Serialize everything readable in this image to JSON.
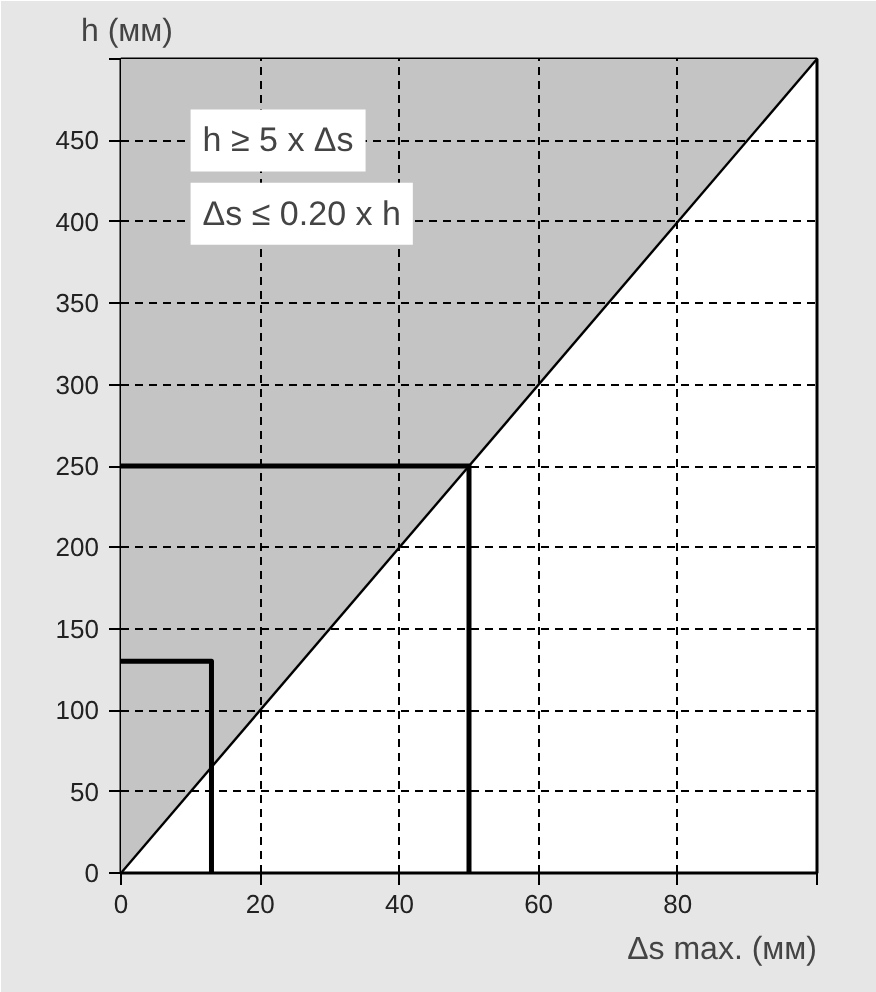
{
  "chart_data": {
    "type": "area",
    "xlabel": "Δs max. (мм)",
    "ylabel": "h (мм)",
    "annotations": [
      "h ≥ 5 x Δs",
      "Δs ≤ 0.20 x h"
    ],
    "xlim": [
      0,
      100
    ],
    "ylim": [
      0,
      500
    ],
    "xticks": [
      0,
      20,
      40,
      60,
      80,
      {
        "value": 100,
        "label": null
      }
    ],
    "yticks": [
      0,
      50,
      100,
      150,
      200,
      250,
      300,
      350,
      400,
      450,
      {
        "value": 500,
        "label": null
      }
    ],
    "grid": true,
    "series": [
      {
        "color": "#c4c4c4",
        "x": [
          0,
          100
        ],
        "values": [
          0,
          500
        ]
      },
      {
        "type": "line",
        "color": "#000000",
        "x": [
          0,
          13,
          13
        ],
        "values": [
          130,
          130,
          0
        ]
      },
      {
        "type": "line",
        "color": "#000000",
        "x": [
          50,
          50,
          0
        ],
        "values": [
          0,
          250,
          250
        ]
      }
    ]
  }
}
